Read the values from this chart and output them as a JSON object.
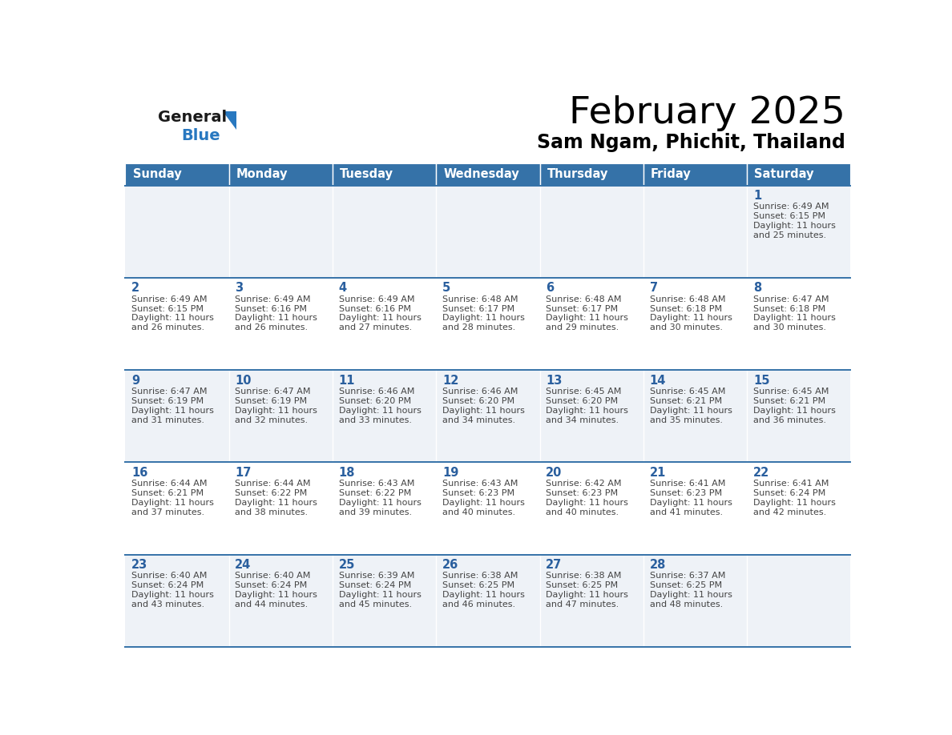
{
  "title": "February 2025",
  "subtitle": "Sam Ngam, Phichit, Thailand",
  "days_of_week": [
    "Sunday",
    "Monday",
    "Tuesday",
    "Wednesday",
    "Thursday",
    "Friday",
    "Saturday"
  ],
  "header_bg": "#3572a8",
  "header_text": "#ffffff",
  "row_bg_light": "#eef2f7",
  "row_bg_white": "#ffffff",
  "day_number_color": "#2a5f9e",
  "cell_text_color": "#444444",
  "border_color": "#3572a8",
  "logo_black": "#1a1a1a",
  "logo_blue": "#2878c0",
  "calendar_data": [
    [
      null,
      null,
      null,
      null,
      null,
      null,
      {
        "day": 1,
        "sunrise": "6:49 AM",
        "sunset": "6:15 PM",
        "daylight_h": "11 hours",
        "daylight_m": "and 25 minutes."
      }
    ],
    [
      {
        "day": 2,
        "sunrise": "6:49 AM",
        "sunset": "6:15 PM",
        "daylight_h": "11 hours",
        "daylight_m": "and 26 minutes."
      },
      {
        "day": 3,
        "sunrise": "6:49 AM",
        "sunset": "6:16 PM",
        "daylight_h": "11 hours",
        "daylight_m": "and 26 minutes."
      },
      {
        "day": 4,
        "sunrise": "6:49 AM",
        "sunset": "6:16 PM",
        "daylight_h": "11 hours",
        "daylight_m": "and 27 minutes."
      },
      {
        "day": 5,
        "sunrise": "6:48 AM",
        "sunset": "6:17 PM",
        "daylight_h": "11 hours",
        "daylight_m": "and 28 minutes."
      },
      {
        "day": 6,
        "sunrise": "6:48 AM",
        "sunset": "6:17 PM",
        "daylight_h": "11 hours",
        "daylight_m": "and 29 minutes."
      },
      {
        "day": 7,
        "sunrise": "6:48 AM",
        "sunset": "6:18 PM",
        "daylight_h": "11 hours",
        "daylight_m": "and 30 minutes."
      },
      {
        "day": 8,
        "sunrise": "6:47 AM",
        "sunset": "6:18 PM",
        "daylight_h": "11 hours",
        "daylight_m": "and 30 minutes."
      }
    ],
    [
      {
        "day": 9,
        "sunrise": "6:47 AM",
        "sunset": "6:19 PM",
        "daylight_h": "11 hours",
        "daylight_m": "and 31 minutes."
      },
      {
        "day": 10,
        "sunrise": "6:47 AM",
        "sunset": "6:19 PM",
        "daylight_h": "11 hours",
        "daylight_m": "and 32 minutes."
      },
      {
        "day": 11,
        "sunrise": "6:46 AM",
        "sunset": "6:20 PM",
        "daylight_h": "11 hours",
        "daylight_m": "and 33 minutes."
      },
      {
        "day": 12,
        "sunrise": "6:46 AM",
        "sunset": "6:20 PM",
        "daylight_h": "11 hours",
        "daylight_m": "and 34 minutes."
      },
      {
        "day": 13,
        "sunrise": "6:45 AM",
        "sunset": "6:20 PM",
        "daylight_h": "11 hours",
        "daylight_m": "and 34 minutes."
      },
      {
        "day": 14,
        "sunrise": "6:45 AM",
        "sunset": "6:21 PM",
        "daylight_h": "11 hours",
        "daylight_m": "and 35 minutes."
      },
      {
        "day": 15,
        "sunrise": "6:45 AM",
        "sunset": "6:21 PM",
        "daylight_h": "11 hours",
        "daylight_m": "and 36 minutes."
      }
    ],
    [
      {
        "day": 16,
        "sunrise": "6:44 AM",
        "sunset": "6:21 PM",
        "daylight_h": "11 hours",
        "daylight_m": "and 37 minutes."
      },
      {
        "day": 17,
        "sunrise": "6:44 AM",
        "sunset": "6:22 PM",
        "daylight_h": "11 hours",
        "daylight_m": "and 38 minutes."
      },
      {
        "day": 18,
        "sunrise": "6:43 AM",
        "sunset": "6:22 PM",
        "daylight_h": "11 hours",
        "daylight_m": "and 39 minutes."
      },
      {
        "day": 19,
        "sunrise": "6:43 AM",
        "sunset": "6:23 PM",
        "daylight_h": "11 hours",
        "daylight_m": "and 40 minutes."
      },
      {
        "day": 20,
        "sunrise": "6:42 AM",
        "sunset": "6:23 PM",
        "daylight_h": "11 hours",
        "daylight_m": "and 40 minutes."
      },
      {
        "day": 21,
        "sunrise": "6:41 AM",
        "sunset": "6:23 PM",
        "daylight_h": "11 hours",
        "daylight_m": "and 41 minutes."
      },
      {
        "day": 22,
        "sunrise": "6:41 AM",
        "sunset": "6:24 PM",
        "daylight_h": "11 hours",
        "daylight_m": "and 42 minutes."
      }
    ],
    [
      {
        "day": 23,
        "sunrise": "6:40 AM",
        "sunset": "6:24 PM",
        "daylight_h": "11 hours",
        "daylight_m": "and 43 minutes."
      },
      {
        "day": 24,
        "sunrise": "6:40 AM",
        "sunset": "6:24 PM",
        "daylight_h": "11 hours",
        "daylight_m": "and 44 minutes."
      },
      {
        "day": 25,
        "sunrise": "6:39 AM",
        "sunset": "6:24 PM",
        "daylight_h": "11 hours",
        "daylight_m": "and 45 minutes."
      },
      {
        "day": 26,
        "sunrise": "6:38 AM",
        "sunset": "6:25 PM",
        "daylight_h": "11 hours",
        "daylight_m": "and 46 minutes."
      },
      {
        "day": 27,
        "sunrise": "6:38 AM",
        "sunset": "6:25 PM",
        "daylight_h": "11 hours",
        "daylight_m": "and 47 minutes."
      },
      {
        "day": 28,
        "sunrise": "6:37 AM",
        "sunset": "6:25 PM",
        "daylight_h": "11 hours",
        "daylight_m": "and 48 minutes."
      },
      null
    ]
  ]
}
